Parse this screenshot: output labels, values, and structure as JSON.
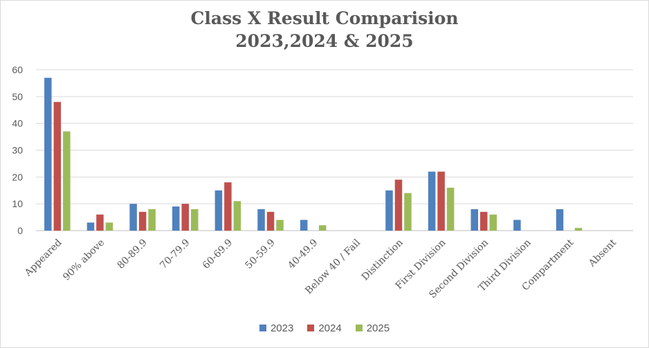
{
  "chart_data": {
    "type": "bar",
    "title": "Class X Result Comparision",
    "subtitle": "2023,2024 & 2025",
    "categories": [
      "Appeared",
      "90% above",
      "80-89.9",
      "70-79.9",
      "60-69.9",
      "50-59.9",
      "40-49.9",
      "Below 40 / Fail",
      "Distinction",
      "First Division",
      "Second Division",
      "Third Division",
      "Compartment",
      "Absent"
    ],
    "series": [
      {
        "name": "2023",
        "color": "#4f81bd",
        "values": [
          57,
          3,
          10,
          9,
          15,
          8,
          4,
          0,
          15,
          22,
          8,
          4,
          8,
          0
        ]
      },
      {
        "name": "2024",
        "color": "#c0504d",
        "values": [
          48,
          6,
          7,
          10,
          18,
          7,
          0,
          0,
          19,
          22,
          7,
          0,
          0,
          0
        ]
      },
      {
        "name": "2025",
        "color": "#9bbb59",
        "values": [
          37,
          3,
          8,
          8,
          11,
          4,
          2,
          0,
          14,
          16,
          6,
          0,
          1,
          0
        ]
      }
    ],
    "ylim": [
      0,
      60
    ],
    "yticks": [
      0,
      10,
      20,
      30,
      40,
      50,
      60
    ],
    "grid": true,
    "legend": "bottom"
  }
}
